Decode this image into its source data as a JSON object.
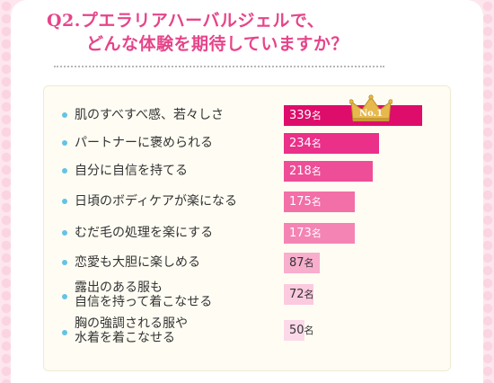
{
  "header": {
    "title_line1": "Q2.プエラリアハーバルジェルで、",
    "title_line2": "どんな体験を期待していますか？"
  },
  "badge": {
    "label": "No.1"
  },
  "colors": {
    "title": "#e6458a",
    "bullet": "#63c3e6",
    "panel": "#fffdf3"
  },
  "chart_data": {
    "type": "bar",
    "orientation": "horizontal",
    "unit": "名",
    "categories": [
      "肌のすべすべ感、若々しさ",
      "パートナーに褒められる",
      "自分に自信を持てる",
      "日頃のボディケアが楽になる",
      "むだ毛の処理を楽にする",
      "恋愛も大胆に楽しめる",
      "露出のある服も\n自信を持って着こなせる",
      "胸の強調される服や\n水着を着こなせる"
    ],
    "values": [
      339,
      234,
      218,
      175,
      173,
      87,
      72,
      50
    ],
    "bar_colors": [
      "#de0c6a",
      "#ea3089",
      "#ee4e97",
      "#f26fa8",
      "#f484b4",
      "#f8aecd",
      "#fbcade",
      "#fcd9e8"
    ],
    "xlim": [
      0,
      339
    ]
  }
}
